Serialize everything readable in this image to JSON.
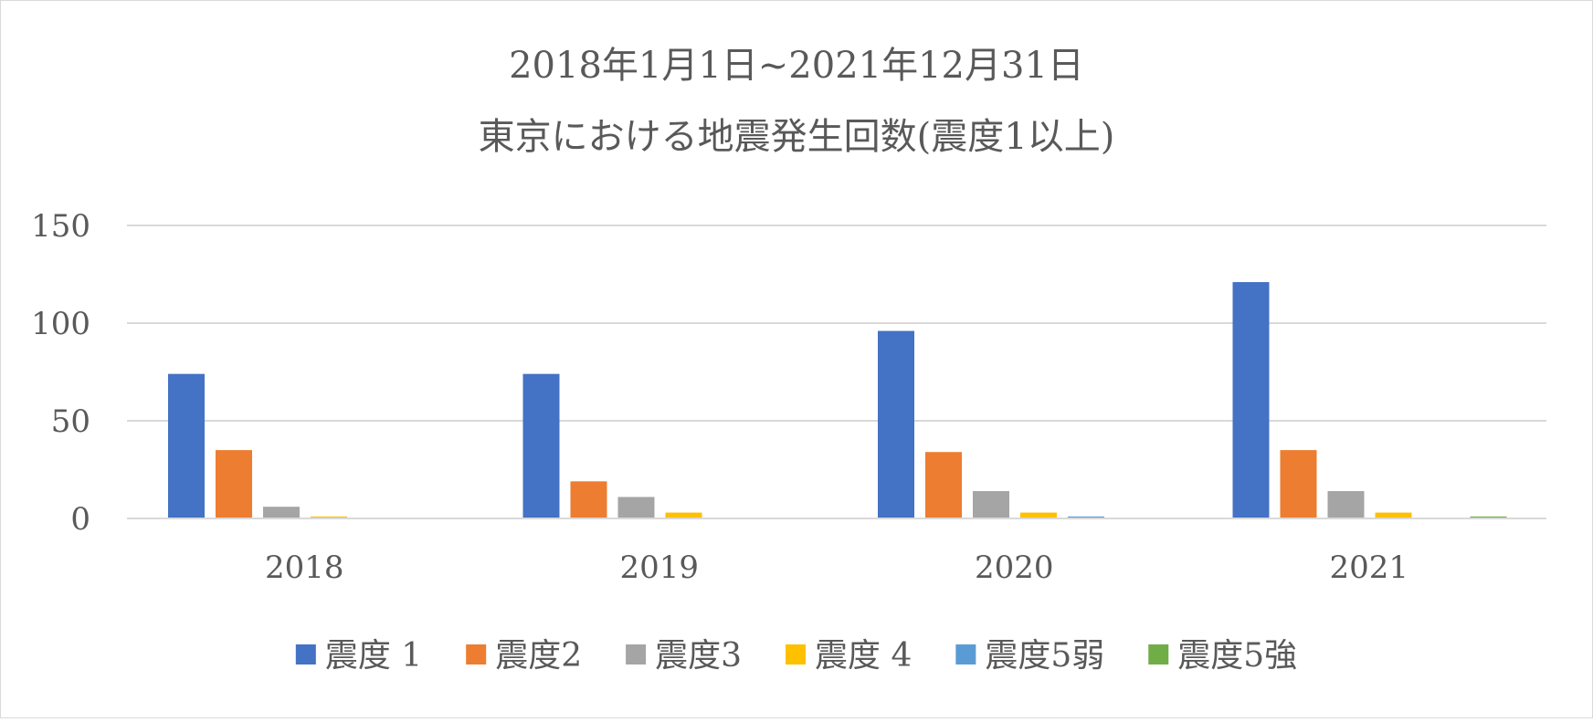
{
  "chart_data": {
    "type": "bar",
    "title_lines": [
      "2018年1月1日~2021年12月31日",
      "東京における地震発生回数(震度1以上)"
    ],
    "categories": [
      "2018",
      "2019",
      "2020",
      "2021"
    ],
    "series": [
      {
        "name": "震度 1",
        "color": "#4472c4",
        "values": [
          74,
          74,
          96,
          121
        ]
      },
      {
        "name": "震度2",
        "color": "#ed7d31",
        "values": [
          35,
          19,
          34,
          35
        ]
      },
      {
        "name": "震度3",
        "color": "#a5a5a5",
        "values": [
          6,
          11,
          14,
          14
        ]
      },
      {
        "name": "震度 4",
        "color": "#ffc000",
        "values": [
          1,
          3,
          3,
          3
        ]
      },
      {
        "name": "震度5弱",
        "color": "#5b9bd5",
        "values": [
          0,
          0,
          1,
          0
        ]
      },
      {
        "name": "震度5強",
        "color": "#70ad47",
        "values": [
          0,
          0,
          0,
          1
        ]
      }
    ],
    "y_ticks": [
      "0",
      "50",
      "100",
      "150"
    ],
    "ylim": [
      0,
      150
    ],
    "grid": true,
    "legend_position": "bottom",
    "gridline_color": "#d9d9d9",
    "axis_color": "#d9d9d9"
  }
}
